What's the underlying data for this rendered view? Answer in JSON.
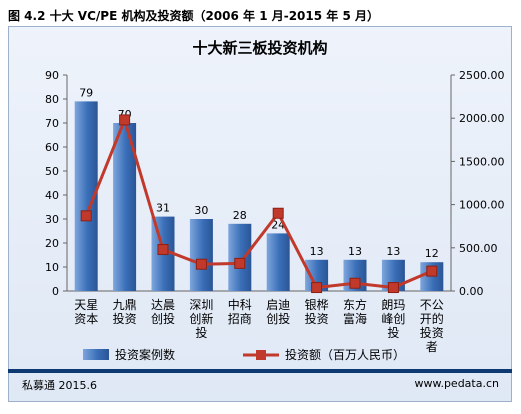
{
  "caption": "图 4.2 十大 VC/PE 机构及投资额（2006 年 1 月-2015 年 5 月）",
  "footer": {
    "source": "私募通 2015.6",
    "url": "www.pedata.cn"
  },
  "colors": {
    "bar": "#3a6fb8",
    "bar_light": "#7ea6dc",
    "line": "#c0392b"
  },
  "chart_data": {
    "type": "bar",
    "title": "十大新三板投资机构",
    "categories": [
      [
        "天星",
        "资本"
      ],
      [
        "九鼎",
        "投资"
      ],
      [
        "达晨",
        "创投"
      ],
      [
        "深圳",
        "创新",
        "投"
      ],
      [
        "中科",
        "招商"
      ],
      [
        "启迪",
        "创投"
      ],
      [
        "银桦",
        "投资"
      ],
      [
        "东方",
        "富海"
      ],
      [
        "朗玛",
        "峰创",
        "投"
      ],
      [
        "不公",
        "开的",
        "投资",
        "者"
      ]
    ],
    "series": [
      {
        "name": "投资案例数",
        "type": "bar",
        "axis": "left",
        "values": [
          79,
          70,
          31,
          30,
          28,
          24,
          13,
          13,
          13,
          12
        ]
      },
      {
        "name": "投资额（百万人民币）",
        "type": "line",
        "axis": "right",
        "values": [
          870,
          1980,
          480,
          310,
          320,
          900,
          40,
          90,
          40,
          230
        ]
      }
    ],
    "y_left": {
      "min": 0,
      "max": 90,
      "step": 10,
      "ticks": [
        "0",
        "10",
        "20",
        "30",
        "40",
        "50",
        "60",
        "70",
        "80",
        "90"
      ]
    },
    "y_right": {
      "min": 0,
      "max": 2500,
      "step": 500,
      "ticks": [
        "0.00",
        "500.00",
        "1000.00",
        "1500.00",
        "2000.00",
        "2500.00"
      ]
    },
    "grid": false,
    "legend": "bottom"
  }
}
